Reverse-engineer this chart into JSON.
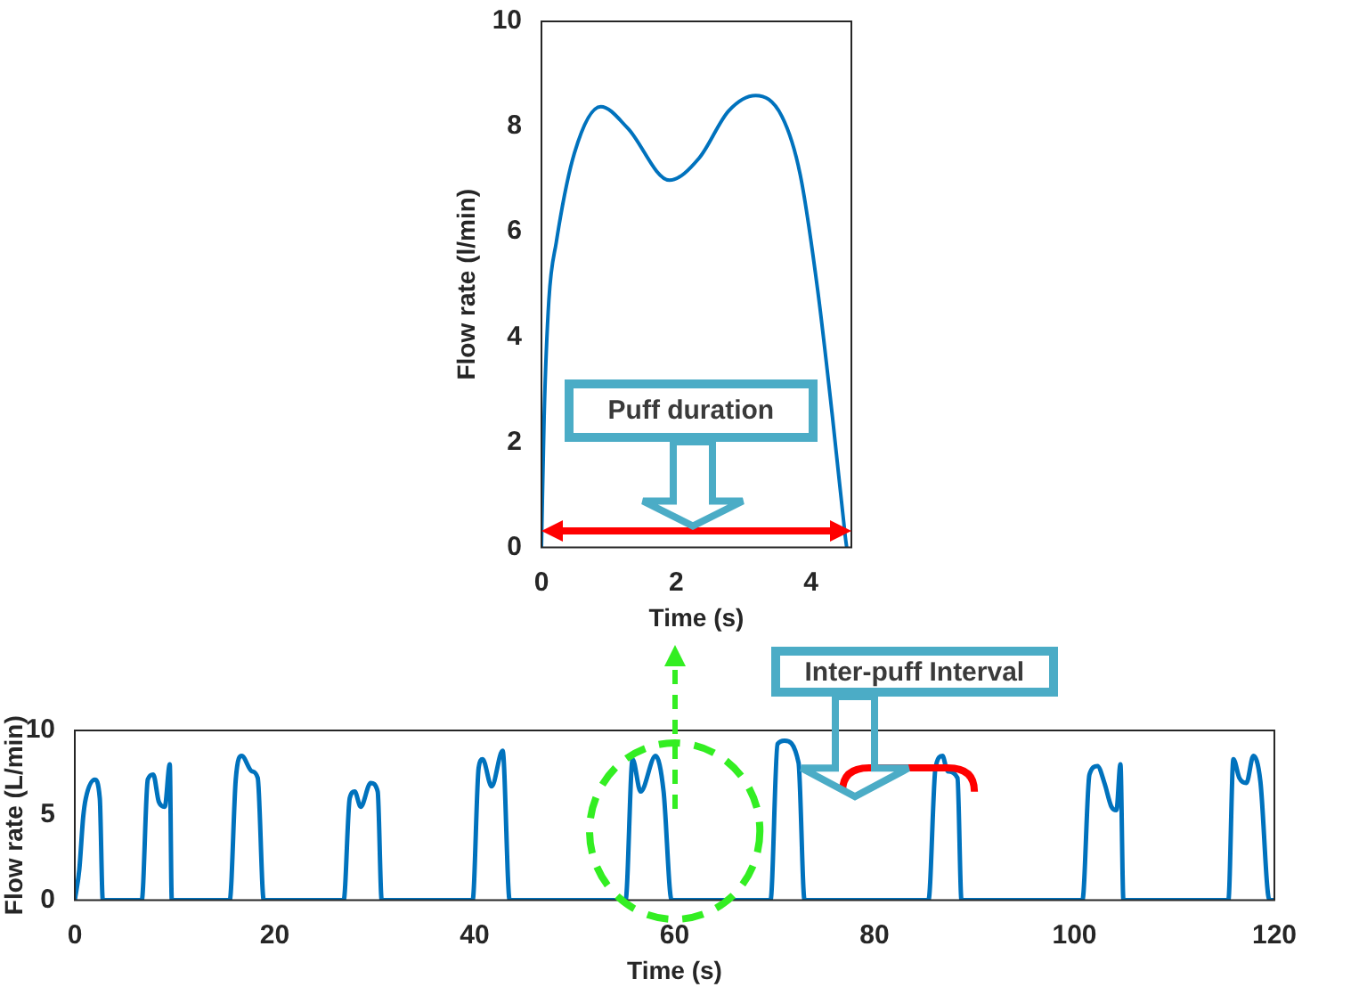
{
  "chart_data": [
    {
      "type": "line",
      "xlabel": "Time (s)",
      "ylabel": "Flow rate (l/min)",
      "color": "#0072bd",
      "x": [
        0,
        0.04,
        0.11,
        0.22,
        0.49,
        0.88,
        1.28,
        1.9,
        2.34,
        2.78,
        3.18,
        3.57,
        3.84,
        4.1,
        4.32,
        4.51,
        4.53
      ],
      "values": [
        0,
        2.5,
        4.7,
        5.8,
        7.5,
        8.38,
        7.97,
        6.98,
        7.4,
        8.3,
        8.59,
        8.19,
        7.09,
        4.89,
        2.47,
        0.2,
        0
      ],
      "xlim": [
        0,
        4.6
      ],
      "xticks": [
        0,
        2,
        4
      ],
      "ylim": [
        0,
        10
      ],
      "yticks": [
        0,
        2,
        4,
        6,
        8,
        10
      ],
      "annotations": [
        "Puff duration"
      ]
    },
    {
      "type": "line",
      "xlabel": "Time (s)",
      "ylabel": "Flow rate (L/min)",
      "color": "#0072bd",
      "x": [
        0,
        0.45,
        0.84,
        1.1,
        2.0,
        2.5,
        2.8,
        6.7,
        7.3,
        7.85,
        8.4,
        9.0,
        9.5,
        9.7,
        15.5,
        16.1,
        16.7,
        17.7,
        18.3,
        18.9,
        26.9,
        27.5,
        28.0,
        28.6,
        29.6,
        30.3,
        30.7,
        39.8,
        40.4,
        40.8,
        41.7,
        42.8,
        43.5,
        55.1,
        55.8,
        56.6,
        58.1,
        58.9,
        59.7,
        69.6,
        70.3,
        71.0,
        72.4,
        73.0,
        85.4,
        86.1,
        86.8,
        87.3,
        88.3,
        88.7,
        100.8,
        101.5,
        102.3,
        103.0,
        103.7,
        104.2,
        104.6,
        104.9,
        115.4,
        115.9,
        116.5,
        117.2,
        117.9,
        118.6,
        119.5,
        120
      ],
      "values": [
        0,
        1.8,
        4.9,
        6.0,
        7.1,
        6.0,
        0,
        0,
        7.1,
        7.4,
        5.8,
        5.5,
        8.0,
        0,
        0,
        7.1,
        8.5,
        7.6,
        7.2,
        0,
        0,
        6.0,
        6.4,
        5.5,
        6.9,
        6.4,
        0,
        0,
        7.8,
        8.3,
        6.7,
        8.8,
        0,
        0,
        8.3,
        6.4,
        8.5,
        6.4,
        0,
        0,
        9.2,
        9.4,
        8.1,
        0,
        0,
        7.8,
        8.5,
        7.6,
        7.2,
        0,
        0,
        7.4,
        7.9,
        6.9,
        5.5,
        5.3,
        8.0,
        0,
        0,
        8.3,
        7.2,
        6.9,
        8.5,
        7.0,
        0,
        0
      ],
      "xlim": [
        0,
        120
      ],
      "xticks": [
        0,
        20,
        40,
        60,
        80,
        100,
        120
      ],
      "ylim": [
        0,
        10
      ],
      "yticks": [
        0,
        5,
        10
      ],
      "annotations": [
        "Inter-puff Interval"
      ]
    }
  ]
}
